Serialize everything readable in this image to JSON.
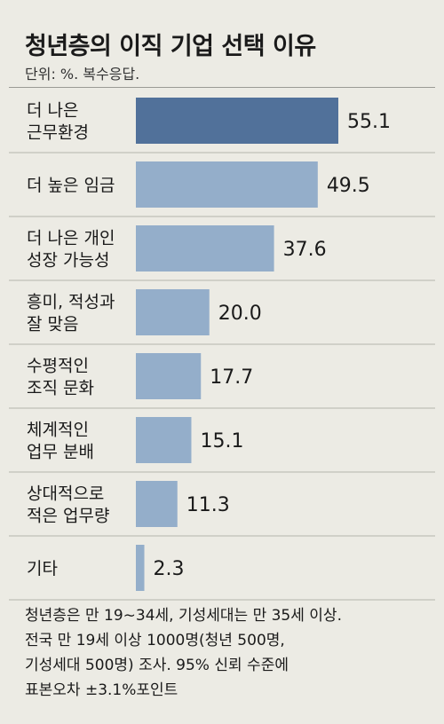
{
  "title": "청년층의 이직 기업 선택 이유",
  "unit": "단위: %. 복수응답.",
  "note": "청년층은 만 19∼34세, 기성세대는 만 35세 이상.\n전국 만 19세 이상 1000명(청년 500명,\n기성세대 500명) 조사. 95% 신뢰 수준에\n표본오차 ±3.1%포인트",
  "colors": {
    "highlight": "#51719a",
    "bar": "#94aeca",
    "background": "#ecebe4"
  },
  "chart_data": {
    "type": "bar",
    "orientation": "horizontal",
    "title": "청년층의 이직 기업 선택 이유",
    "xlabel": "",
    "ylabel": "",
    "categories": [
      [
        "더 나은",
        "근무환경"
      ],
      [
        "더 높은 임금"
      ],
      [
        "더 나은 개인",
        "성장 가능성"
      ],
      [
        "흥미, 적성과",
        "잘 맞음"
      ],
      [
        "수평적인",
        "조직 문화"
      ],
      [
        "체계적인",
        "업무 분배"
      ],
      [
        "상대적으로",
        "적은 업무량"
      ],
      [
        "기타"
      ]
    ],
    "values": [
      55.1,
      49.5,
      37.6,
      20.0,
      17.7,
      15.1,
      11.3,
      2.3
    ],
    "value_labels": [
      "55.1",
      "49.5",
      "37.6",
      "20.0",
      "17.7",
      "15.1",
      "11.3",
      "2.3"
    ],
    "xlim": [
      0,
      55.1
    ],
    "highlight_index": 0,
    "grid": false,
    "legend": "none"
  }
}
